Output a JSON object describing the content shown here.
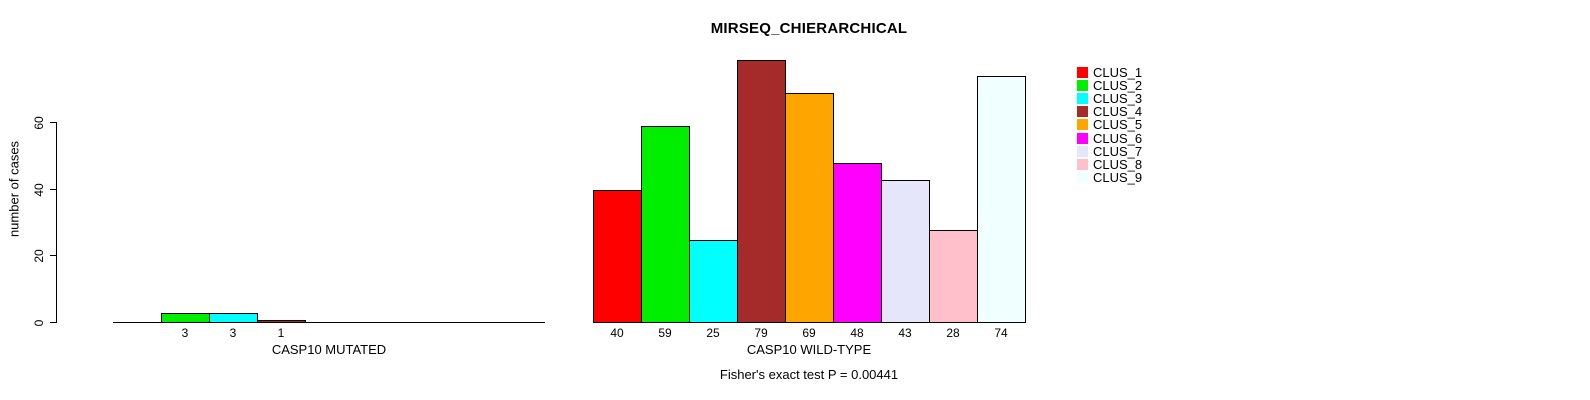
{
  "title": "MIRSEQ_CHIERARCHICAL",
  "y_axis": {
    "label": "number of cases",
    "ticks": [
      "0",
      "20",
      "40",
      "60"
    ]
  },
  "legend": [
    {
      "label": "CLUS_1",
      "color": "#FF0000"
    },
    {
      "label": "CLUS_2",
      "color": "#00EE00"
    },
    {
      "label": "CLUS_3",
      "color": "#00FFFF"
    },
    {
      "label": "CLUS_4",
      "color": "#A52A2A"
    },
    {
      "label": "CLUS_5",
      "color": "#FFA500"
    },
    {
      "label": "CLUS_6",
      "color": "#FF00FF"
    },
    {
      "label": "CLUS_7",
      "color": "#E6E6FA"
    },
    {
      "label": "CLUS_8",
      "color": "#FFC0CB"
    },
    {
      "label": "CLUS_9",
      "color": "#F0FFFF"
    }
  ],
  "chart_data": {
    "type": "bar",
    "title": "MIRSEQ_CHIERARCHICAL",
    "ylabel": "number of cases",
    "ylim": [
      0,
      60
    ],
    "yticks": [
      0,
      20,
      40,
      60
    ],
    "grid": false,
    "legend_position": "right",
    "bar_spacing": 0,
    "categories": [
      "CLUS_1",
      "CLUS_2",
      "CLUS_3",
      "CLUS_4",
      "CLUS_5",
      "CLUS_6",
      "CLUS_7",
      "CLUS_8",
      "CLUS_9"
    ],
    "colors": [
      "#FF0000",
      "#00EE00",
      "#00FFFF",
      "#A52A2A",
      "#FFA500",
      "#FF00FF",
      "#E6E6FA",
      "#FFC0CB",
      "#F0FFFF"
    ],
    "panels": [
      {
        "xlabel": "CASP10 MUTATED",
        "values": [
          0,
          3,
          3,
          1,
          0,
          0,
          0,
          0,
          0
        ],
        "bar_labels": [
          "",
          "3",
          "3",
          "1",
          "",
          "",
          "",
          "",
          ""
        ]
      },
      {
        "xlabel": "CASP10 WILD-TYPE",
        "values": [
          40,
          59,
          25,
          79,
          69,
          48,
          43,
          28,
          74
        ],
        "bar_labels": [
          "40",
          "59",
          "25",
          "79",
          "69",
          "48",
          "43",
          "28",
          "74"
        ]
      }
    ],
    "annotation": "Fisher's exact test P = 0.00441"
  }
}
